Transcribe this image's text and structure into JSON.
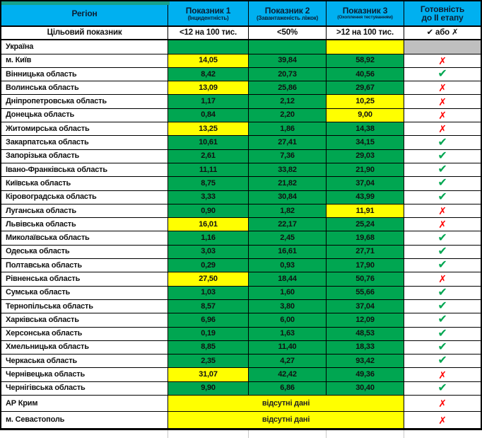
{
  "header": {
    "col_region": "Регіон",
    "col1_title": "Показник 1",
    "col1_sub": "(Інцидентність)",
    "col2_title": "Показник 2",
    "col2_sub": "(Завантаженість ліжок)",
    "col3_title": "Показник 3",
    "col3_sub": "(Охоплення тестуванням)",
    "col4_line1": "Готовність",
    "col4_line2": "до ІІ етапу"
  },
  "target_row": {
    "label": "Цільовий показник",
    "v1": "<12 на 100 тис.",
    "v2": "<50%",
    "v3": ">12 на 100 тис.",
    "status": "✔ або ✗"
  },
  "no_data_label": "відсутні дані",
  "status_icons": {
    "pass": "✔",
    "fail": "✗",
    "none": ""
  },
  "colors": {
    "header_blue": "#00B0F0",
    "cell_green": "#00A651",
    "cell_yellow": "#FFFF00",
    "cell_gray": "#BFBFBF",
    "teal_strip": "#17A18C",
    "check_green": "#00A651",
    "x_red": "#FF0000"
  },
  "ukraine_row": {
    "name": "Україна",
    "v1": "",
    "v1c": "g",
    "v2": "",
    "v2c": "g",
    "v3": "",
    "v3c": "y",
    "status": "none"
  },
  "regions": [
    {
      "name": "м. Київ",
      "v1": "14,05",
      "v1c": "y",
      "v2": "39,84",
      "v2c": "g",
      "v3": "58,92",
      "v3c": "g",
      "status": "fail"
    },
    {
      "name": "Вінницька область",
      "v1": "8,42",
      "v1c": "g",
      "v2": "20,73",
      "v2c": "g",
      "v3": "40,56",
      "v3c": "g",
      "status": "pass"
    },
    {
      "name": "Волинська область",
      "v1": "13,09",
      "v1c": "y",
      "v2": "25,86",
      "v2c": "g",
      "v3": "29,67",
      "v3c": "g",
      "status": "fail"
    },
    {
      "name": "Дніпропетровська область",
      "v1": "1,17",
      "v1c": "g",
      "v2": "2,12",
      "v2c": "g",
      "v3": "10,25",
      "v3c": "y",
      "status": "fail"
    },
    {
      "name": "Донецька область",
      "v1": "0,84",
      "v1c": "g",
      "v2": "2,20",
      "v2c": "g",
      "v3": "9,00",
      "v3c": "y",
      "status": "fail"
    },
    {
      "name": "Житомирська область",
      "v1": "13,25",
      "v1c": "y",
      "v2": "1,86",
      "v2c": "g",
      "v3": "14,38",
      "v3c": "g",
      "status": "fail"
    },
    {
      "name": "Закарпатська область",
      "v1": "10,61",
      "v1c": "g",
      "v2": "27,41",
      "v2c": "g",
      "v3": "34,15",
      "v3c": "g",
      "status": "pass"
    },
    {
      "name": "Запорізька область",
      "v1": "2,61",
      "v1c": "g",
      "v2": "7,36",
      "v2c": "g",
      "v3": "29,03",
      "v3c": "g",
      "status": "pass"
    },
    {
      "name": "Івано-Франківська область",
      "v1": "11,11",
      "v1c": "g",
      "v2": "33,82",
      "v2c": "g",
      "v3": "21,90",
      "v3c": "g",
      "status": "pass"
    },
    {
      "name": "Київська область",
      "v1": "8,75",
      "v1c": "g",
      "v2": "21,82",
      "v2c": "g",
      "v3": "37,04",
      "v3c": "g",
      "status": "pass"
    },
    {
      "name": "Кіровоградська область",
      "v1": "3,33",
      "v1c": "g",
      "v2": "30,84",
      "v2c": "g",
      "v3": "43,99",
      "v3c": "g",
      "status": "pass"
    },
    {
      "name": "Луганська область",
      "v1": "0,90",
      "v1c": "g",
      "v2": "1,82",
      "v2c": "g",
      "v3": "11,91",
      "v3c": "y",
      "status": "fail"
    },
    {
      "name": "Львівська область",
      "v1": "16,01",
      "v1c": "y",
      "v2": "22,17",
      "v2c": "g",
      "v3": "25,24",
      "v3c": "g",
      "status": "fail"
    },
    {
      "name": "Миколаївська область",
      "v1": "1,16",
      "v1c": "g",
      "v2": "2,45",
      "v2c": "g",
      "v3": "19,68",
      "v3c": "g",
      "status": "pass"
    },
    {
      "name": "Одеська область",
      "v1": "3,03",
      "v1c": "g",
      "v2": "16,61",
      "v2c": "g",
      "v3": "27,71",
      "v3c": "g",
      "status": "pass"
    },
    {
      "name": "Полтавська область",
      "v1": "0,29",
      "v1c": "g",
      "v2": "0,93",
      "v2c": "g",
      "v3": "17,90",
      "v3c": "g",
      "status": "pass"
    },
    {
      "name": "Рівненська область",
      "v1": "27,50",
      "v1c": "y",
      "v2": "18,44",
      "v2c": "g",
      "v3": "50,76",
      "v3c": "g",
      "status": "fail"
    },
    {
      "name": "Сумська область",
      "v1": "1,03",
      "v1c": "g",
      "v2": "1,60",
      "v2c": "g",
      "v3": "55,66",
      "v3c": "g",
      "status": "pass"
    },
    {
      "name": "Тернопільська область",
      "v1": "8,57",
      "v1c": "g",
      "v2": "3,80",
      "v2c": "g",
      "v3": "37,04",
      "v3c": "g",
      "status": "pass"
    },
    {
      "name": "Харківська область",
      "v1": "6,96",
      "v1c": "g",
      "v2": "6,00",
      "v2c": "g",
      "v3": "12,09",
      "v3c": "g",
      "status": "pass"
    },
    {
      "name": "Херсонська область",
      "v1": "0,19",
      "v1c": "g",
      "v2": "1,63",
      "v2c": "g",
      "v3": "48,53",
      "v3c": "g",
      "status": "pass"
    },
    {
      "name": "Хмельницька область",
      "v1": "8,85",
      "v1c": "g",
      "v2": "11,40",
      "v2c": "g",
      "v3": "18,33",
      "v3c": "g",
      "status": "pass"
    },
    {
      "name": "Черкаська область",
      "v1": "2,35",
      "v1c": "g",
      "v2": "4,27",
      "v2c": "g",
      "v3": "93,42",
      "v3c": "g",
      "status": "pass"
    },
    {
      "name": "Чернівецька область",
      "v1": "31,07",
      "v1c": "y",
      "v2": "42,42",
      "v2c": "g",
      "v3": "49,36",
      "v3c": "g",
      "status": "fail"
    },
    {
      "name": "Чернігівська область",
      "v1": "9,90",
      "v1c": "g",
      "v2": "6,86",
      "v2c": "g",
      "v3": "30,40",
      "v3c": "g",
      "status": "pass"
    },
    {
      "name": "АР Крим",
      "no_data": true,
      "status": "fail",
      "row_class": "row-crimea"
    },
    {
      "name": "м. Севастополь",
      "no_data": true,
      "status": "fail",
      "row_class": "row-sev"
    }
  ]
}
